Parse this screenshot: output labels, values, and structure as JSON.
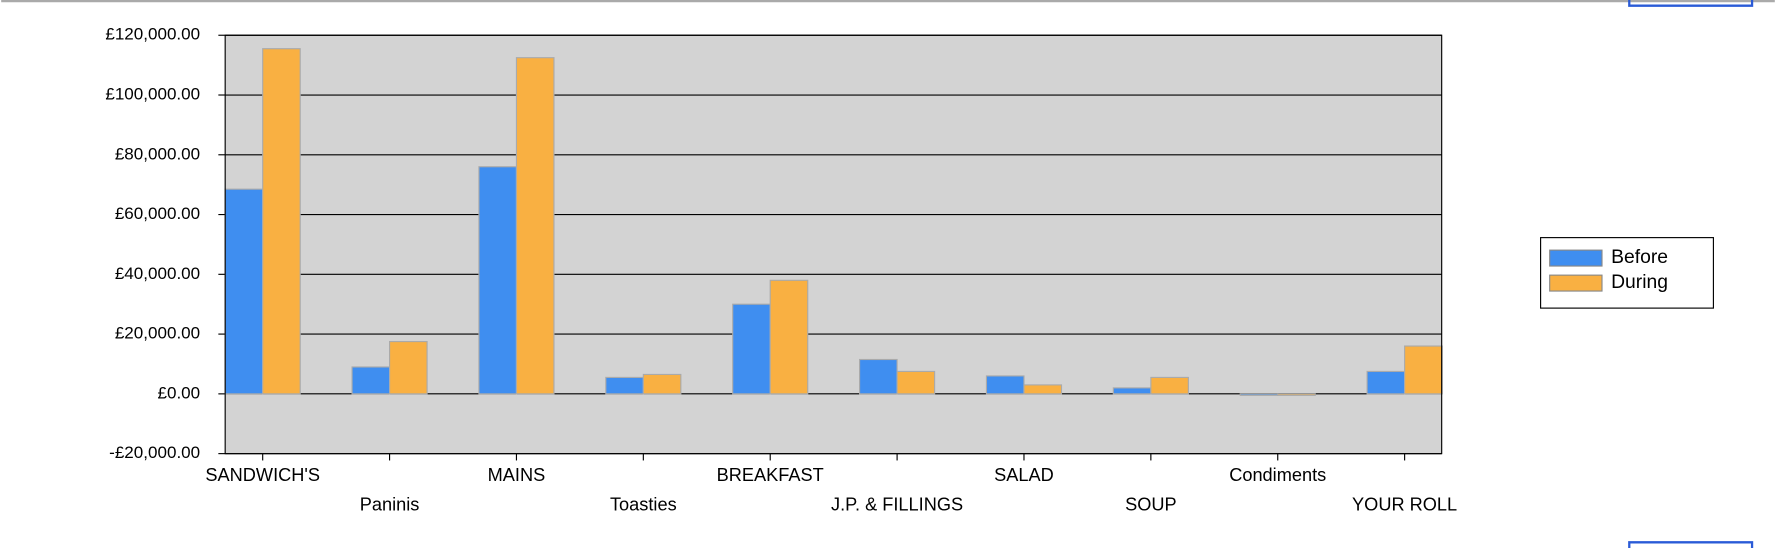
{
  "chart_data": {
    "type": "bar",
    "categories": [
      "SANDWICH'S",
      "Paninis",
      "MAINS",
      "Toasties",
      "BREAKFAST",
      "J.P. & FILLINGS",
      "SALAD",
      "SOUP",
      "Condiments",
      "YOUR ROLL"
    ],
    "series": [
      {
        "name": "Before",
        "color": "#3f8ef0",
        "values": [
          68500,
          9000,
          76000,
          5500,
          30000,
          11500,
          6000,
          2000,
          -500,
          7500
        ]
      },
      {
        "name": "During",
        "color": "#f9b042",
        "values": [
          115500,
          17500,
          112500,
          6500,
          38000,
          7500,
          3000,
          5500,
          -500,
          16000
        ]
      }
    ],
    "ylim": [
      -20000,
      120000
    ],
    "yticks": [
      {
        "value": -20000,
        "label": "-£20,000.00"
      },
      {
        "value": 0,
        "label": "£0.00"
      },
      {
        "value": 20000,
        "label": "£20,000.00"
      },
      {
        "value": 40000,
        "label": "£40,000.00"
      },
      {
        "value": 60000,
        "label": "£60,000.00"
      },
      {
        "value": 80000,
        "label": "£80,000.00"
      },
      {
        "value": 100000,
        "label": "£100,000.00"
      },
      {
        "value": 120000,
        "label": "£120,000.00"
      }
    ],
    "grid": true,
    "legend": "right"
  }
}
